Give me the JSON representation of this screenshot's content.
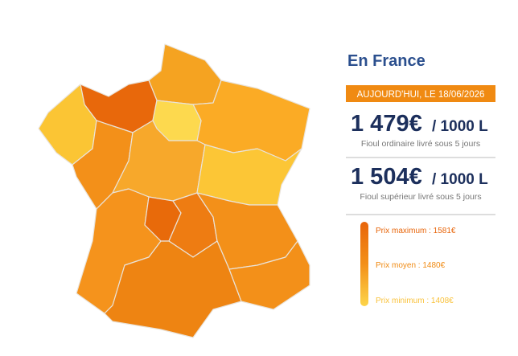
{
  "header": {
    "title": "En France",
    "date_banner": "AUJOURD'HUI, LE 18/06/2026"
  },
  "prices": [
    {
      "price": "1 479€",
      "unit": "/ 1000 L",
      "description": "Fioul ordinaire livré sous 5 jours"
    },
    {
      "price": "1 504€",
      "unit": "/ 1000 L",
      "description": "Fioul supérieur livré sous 5 jours"
    }
  ],
  "legend": {
    "max": "Prix maximum : 1581€",
    "avg": "Prix moyen : 1480€",
    "min": "Prix minimum : 1408€"
  }
}
